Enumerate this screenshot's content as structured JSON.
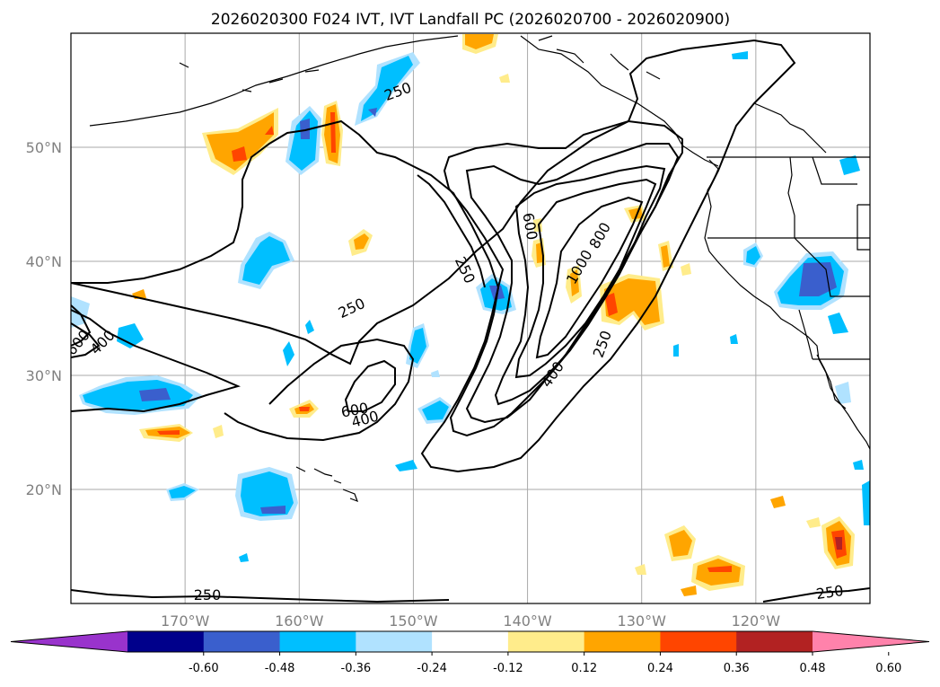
{
  "title": "2026020300 F024 IVT, IVT Landfall PC (2026020700 - 2026020900)",
  "map": {
    "lon_range": [
      -180,
      -110
    ],
    "lat_range": [
      10,
      60
    ],
    "lat_ticks": [
      {
        "lat": 50,
        "label": "50°N"
      },
      {
        "lat": 40,
        "label": "40°N"
      },
      {
        "lat": 30,
        "label": "30°N"
      },
      {
        "lat": 20,
        "label": "20°N"
      }
    ],
    "lon_ticks": [
      {
        "lon": -170,
        "label": "170°W"
      },
      {
        "lon": -160,
        "label": "160°W"
      },
      {
        "lon": -150,
        "label": "150°W"
      },
      {
        "lon": -140,
        "label": "140°W"
      },
      {
        "lon": -130,
        "label": "130°W"
      },
      {
        "lon": -120,
        "label": "120°W"
      }
    ],
    "ivt_contour_labels": [
      "250",
      "250",
      "250",
      "250",
      "250",
      "250",
      "400",
      "400",
      "400",
      "600",
      "600",
      "600",
      "800",
      "1000",
      "250"
    ]
  },
  "colorbar": {
    "colors": [
      "#9933cc",
      "#00008b",
      "#3a5fcd",
      "#00bfff",
      "#b0e2ff",
      "#ffffff",
      "#ffec8b",
      "#ffa500",
      "#ff4500",
      "#b22222",
      "#ff82ab"
    ],
    "labels": [
      "-0.60",
      "-0.48",
      "-0.36",
      "-0.24",
      "-0.12",
      "0.12",
      "0.24",
      "0.36",
      "0.48",
      "0.60"
    ]
  }
}
